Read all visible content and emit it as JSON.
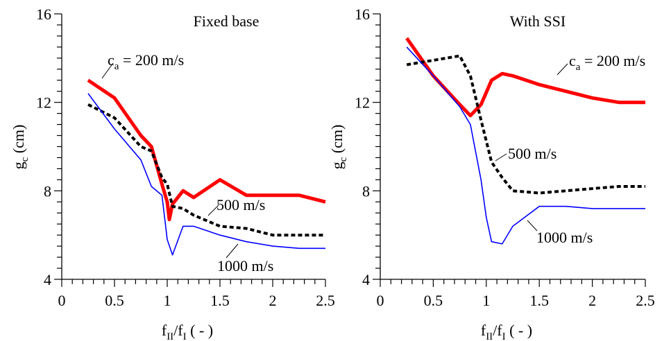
{
  "chart_data": [
    {
      "type": "line",
      "title": "Fixed base",
      "xlabel": "f_II/f_I ( - )",
      "ylabel": "g_c (cm)",
      "xlim": [
        0,
        2.5
      ],
      "ylim": [
        4,
        16
      ],
      "x_ticks": [
        "0",
        "0.5",
        "1",
        "1.5",
        "2",
        "2.5"
      ],
      "y_ticks": [
        "4",
        "8",
        "12",
        "16"
      ],
      "x_tick_values": [
        0,
        0.5,
        1,
        1.5,
        2,
        2.5
      ],
      "y_tick_values": [
        4,
        8,
        12,
        16
      ],
      "grid": false,
      "series": [
        {
          "name": "c_a = 200 m/s",
          "style": "thick-solid",
          "color": "#ff0000",
          "x": [
            0.25,
            0.5,
            0.75,
            0.85,
            0.95,
            1.0,
            1.02,
            1.05,
            1.15,
            1.25,
            1.5,
            1.75,
            2.0,
            2.25,
            2.5
          ],
          "y": [
            13.0,
            12.2,
            10.5,
            10.0,
            8.3,
            7.5,
            6.7,
            7.4,
            8.0,
            7.7,
            8.5,
            7.8,
            7.8,
            7.8,
            7.5
          ]
        },
        {
          "name": "500 m/s",
          "style": "dashed",
          "color": "#000000",
          "x": [
            0.25,
            0.5,
            0.75,
            0.85,
            0.95,
            1.0,
            1.05,
            1.15,
            1.25,
            1.5,
            1.75,
            2.0,
            2.25,
            2.5
          ],
          "y": [
            11.9,
            11.3,
            10.0,
            9.8,
            8.6,
            8.3,
            7.3,
            7.2,
            6.9,
            6.4,
            6.3,
            6.0,
            6.0,
            6.0
          ]
        },
        {
          "name": "1000 m/s",
          "style": "thin-solid",
          "color": "#0000ff",
          "x": [
            0.25,
            0.5,
            0.75,
            0.85,
            0.95,
            1.0,
            1.05,
            1.15,
            1.25,
            1.5,
            1.75,
            2.0,
            2.25,
            2.5
          ],
          "y": [
            12.4,
            10.8,
            9.4,
            8.2,
            7.8,
            5.8,
            5.1,
            6.4,
            6.4,
            6.0,
            5.7,
            5.5,
            5.4,
            5.4
          ]
        }
      ],
      "annotations": [
        {
          "text_main": "c",
          "text_sub": "a",
          "text_rest": " = 200 m/s"
        },
        {
          "text": "500 m/s"
        },
        {
          "text": "1000 m/s"
        }
      ]
    },
    {
      "type": "line",
      "title": "With SSI",
      "xlabel": "f_II/f_I ( - )",
      "ylabel": "g_c (cm)",
      "xlim": [
        0,
        2.5
      ],
      "ylim": [
        4,
        16
      ],
      "x_ticks": [
        "0",
        "0.5",
        "1",
        "1.5",
        "2",
        "2.5"
      ],
      "y_ticks": [
        "4",
        "8",
        "12",
        "16"
      ],
      "x_tick_values": [
        0,
        0.5,
        1,
        1.5,
        2,
        2.5
      ],
      "y_tick_values": [
        4,
        8,
        12,
        16
      ],
      "grid": false,
      "series": [
        {
          "name": "c_a = 200 m/s",
          "style": "thick-solid",
          "color": "#ff0000",
          "x": [
            0.25,
            0.5,
            0.75,
            0.85,
            0.95,
            1.05,
            1.15,
            1.25,
            1.5,
            1.75,
            2.0,
            2.25,
            2.5
          ],
          "y": [
            14.9,
            13.2,
            11.9,
            11.4,
            11.9,
            13.0,
            13.3,
            13.2,
            12.8,
            12.5,
            12.2,
            12.0,
            12.0
          ]
        },
        {
          "name": "500 m/s",
          "style": "dashed",
          "color": "#000000",
          "x": [
            0.25,
            0.5,
            0.75,
            0.85,
            0.95,
            1.05,
            1.15,
            1.25,
            1.5,
            1.75,
            2.0,
            2.25,
            2.5
          ],
          "y": [
            13.7,
            13.9,
            14.1,
            13.2,
            11.2,
            9.3,
            8.6,
            8.0,
            7.9,
            8.0,
            8.1,
            8.2,
            8.2
          ]
        },
        {
          "name": "1000 m/s",
          "style": "thin-solid",
          "color": "#0000ff",
          "x": [
            0.25,
            0.5,
            0.75,
            0.85,
            0.95,
            1.0,
            1.05,
            1.15,
            1.25,
            1.5,
            1.75,
            2.0,
            2.25,
            2.5
          ],
          "y": [
            14.5,
            13.2,
            11.8,
            11.0,
            8.5,
            6.8,
            5.7,
            5.6,
            6.4,
            7.3,
            7.3,
            7.2,
            7.2,
            7.2
          ]
        }
      ],
      "annotations": [
        {
          "text_main": "c",
          "text_sub": "a",
          "text_rest": " = 200 m/s"
        },
        {
          "text": "500 m/s"
        },
        {
          "text": "1000 m/s"
        }
      ]
    }
  ],
  "labels": {
    "ylabel_main": "g",
    "ylabel_sub": "c",
    "ylabel_rest": " (cm)",
    "xlabel_main1": "f",
    "xlabel_sub1": "II",
    "xlabel_mid": "/f",
    "xlabel_sub2": "I",
    "xlabel_rest": " ( - )"
  }
}
